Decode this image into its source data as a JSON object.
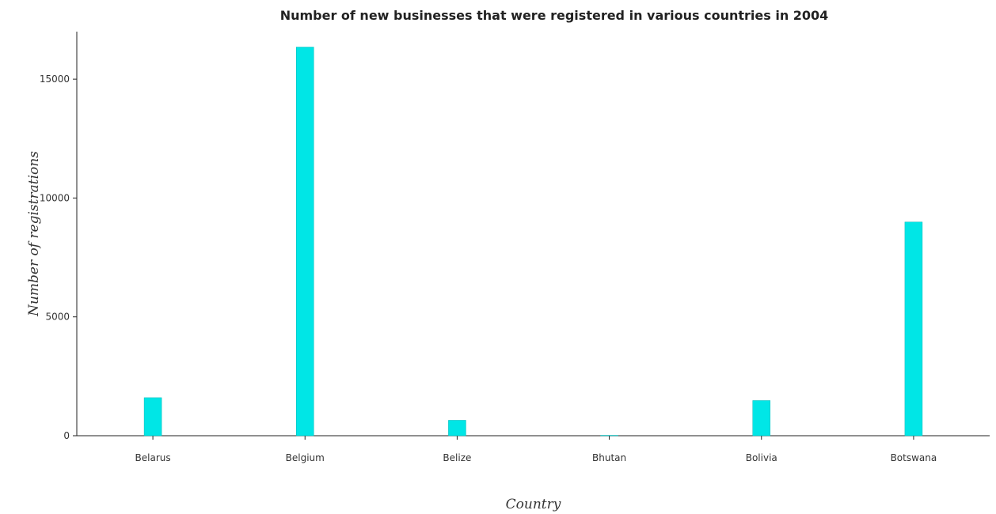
{
  "chart_data": {
    "type": "bar",
    "title": "Number of new businesses that were registered in various countries in 2004",
    "xlabel": "Country",
    "ylabel": "Number of registrations",
    "categories": [
      "Belarus",
      "Belgium",
      "Belize",
      "Bhutan",
      "Bolivia",
      "Botswana"
    ],
    "values": [
      1600,
      16350,
      650,
      5,
      1480,
      8990
    ],
    "ylim": [
      0,
      17000
    ],
    "yticks": [
      0,
      5000,
      10000,
      15000
    ],
    "ytick_labels": [
      "0",
      "5000",
      "10000",
      "15000"
    ],
    "grid": false,
    "legend": "none",
    "colors": {
      "bar_fill": "#00e6e6",
      "bar_stroke": "#00b8b8",
      "axis": "#222222"
    }
  }
}
